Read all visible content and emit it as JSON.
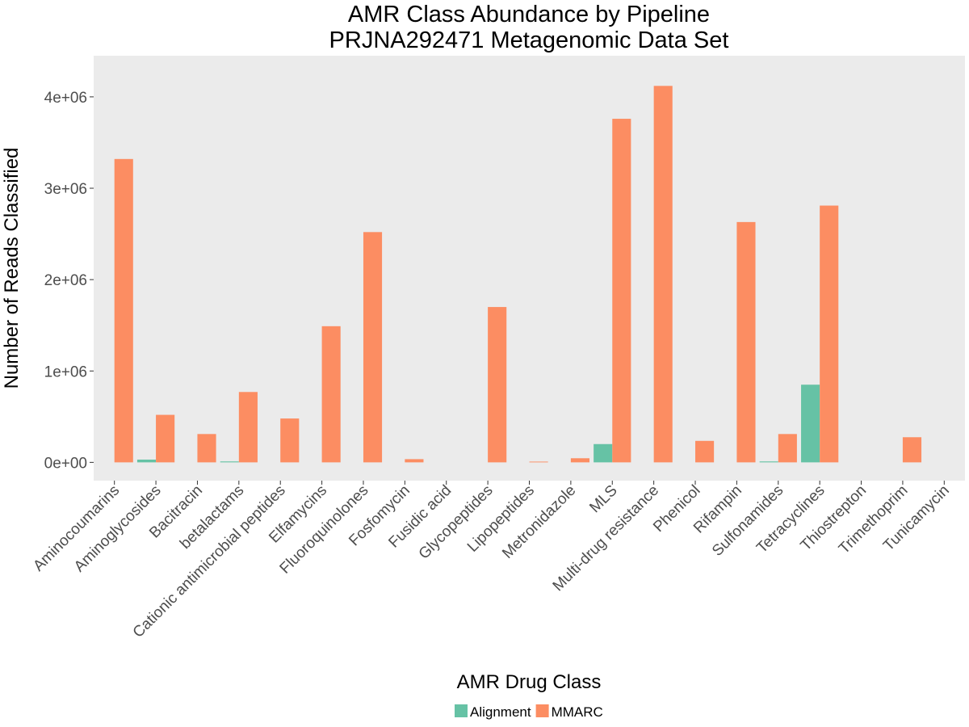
{
  "chart_data": {
    "type": "bar",
    "title": "AMR Class Abundance by Pipeline",
    "subtitle": "PRJNA292471 Metagenomic Data Set",
    "xlabel": "AMR Drug Class",
    "ylabel": "Number of Reads Classified",
    "ylim": [
      -200000,
      4450000
    ],
    "yticks": [
      0,
      1000000,
      2000000,
      3000000,
      4000000
    ],
    "ytick_labels": [
      "0e+00",
      "1e+06",
      "2e+06",
      "3e+06",
      "4e+06"
    ],
    "grid": false,
    "background_color": "#ebebeb",
    "legend_position": "bottom",
    "categories": [
      "Aminocoumarins",
      "Aminoglycosides",
      "Bacitracin",
      "betalactams",
      "Cationic antimicrobial peptides",
      "Elfamycins",
      "Fluoroquinolones",
      "Fosfomycin",
      "Fusidic acid",
      "Glycopeptides",
      "Lipopeptides",
      "Metronidazole",
      "MLS",
      "Multi-drug resistance",
      "Phenicol",
      "Rifampin",
      "Sulfonamides",
      "Tetracyclines",
      "Thiostrepton",
      "Trimethoprim",
      "Tunicamycin"
    ],
    "series": [
      {
        "name": "Alignment",
        "color": "#66c2a5",
        "values": [
          0,
          30000,
          0,
          10000,
          0,
          0,
          0,
          0,
          0,
          0,
          0,
          0,
          200000,
          0,
          0,
          0,
          10000,
          850000,
          0,
          0,
          0
        ]
      },
      {
        "name": "MMARC",
        "color": "#fc8d62",
        "values": [
          3320000,
          520000,
          310000,
          770000,
          480000,
          1490000,
          2520000,
          35000,
          0,
          1700000,
          8000,
          45000,
          3760000,
          4120000,
          235000,
          2630000,
          310000,
          2810000,
          0,
          275000,
          0
        ]
      }
    ]
  }
}
